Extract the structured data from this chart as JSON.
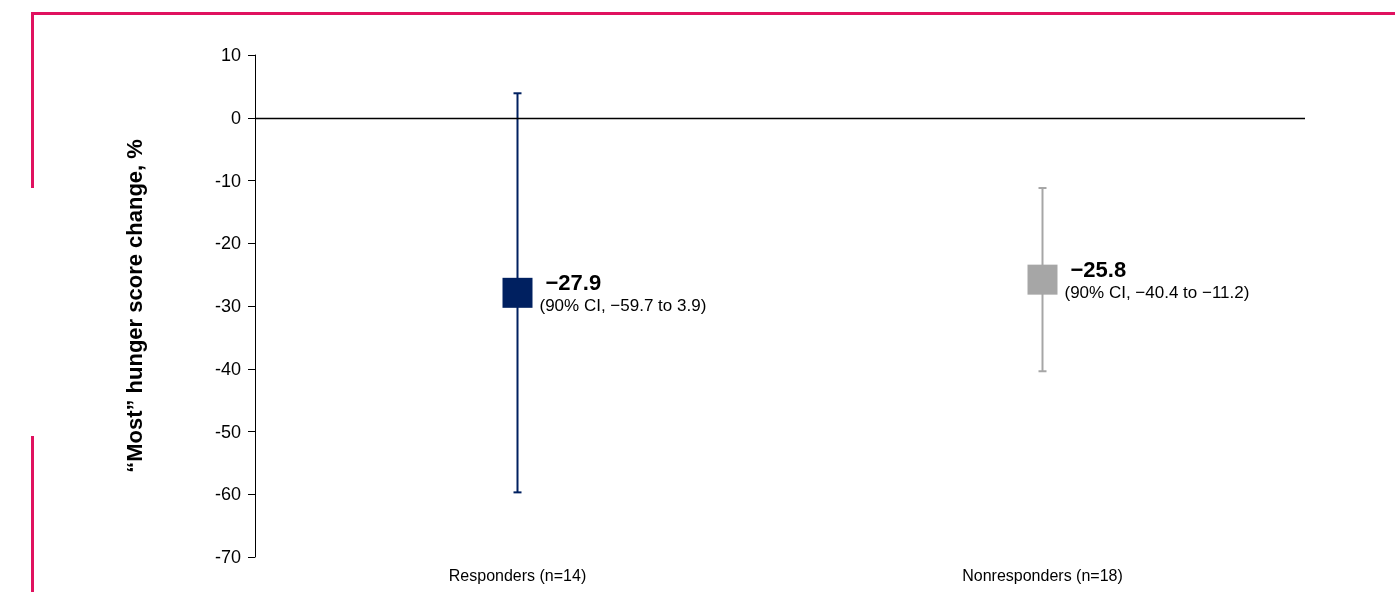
{
  "chart_data": {
    "type": "scatter",
    "ylabel": "“Most” hunger score change, %",
    "categories": [
      "Responders (n=14)",
      "Nonresponders (n=18)"
    ],
    "values": [
      -27.9,
      -25.8
    ],
    "colors": [
      "#002060",
      "#a6a6a6"
    ],
    "errors": [
      [
        -59.7,
        3.9
      ],
      [
        -40.4,
        -11.2
      ]
    ],
    "value_labels": [
      "−27.9",
      "−25.8"
    ],
    "annotations": [
      {
        "text": "(90% CI, −59.7 to 3.9)",
        "x": "Responders (n=14)",
        "y": -27.9
      },
      {
        "text": "(90% CI, −40.4 to −11.2)",
        "x": "Nonresponders (n=18)",
        "y": -25.8
      }
    ],
    "ylim": [
      -70,
      10
    ],
    "yticks": [
      -70,
      -60,
      -50,
      -40,
      -30,
      -20,
      -10,
      0,
      10
    ],
    "ref_lines": [
      {
        "axis": "y",
        "value": 0,
        "color": "#000000"
      }
    ],
    "marker": "square",
    "grid": false
  }
}
